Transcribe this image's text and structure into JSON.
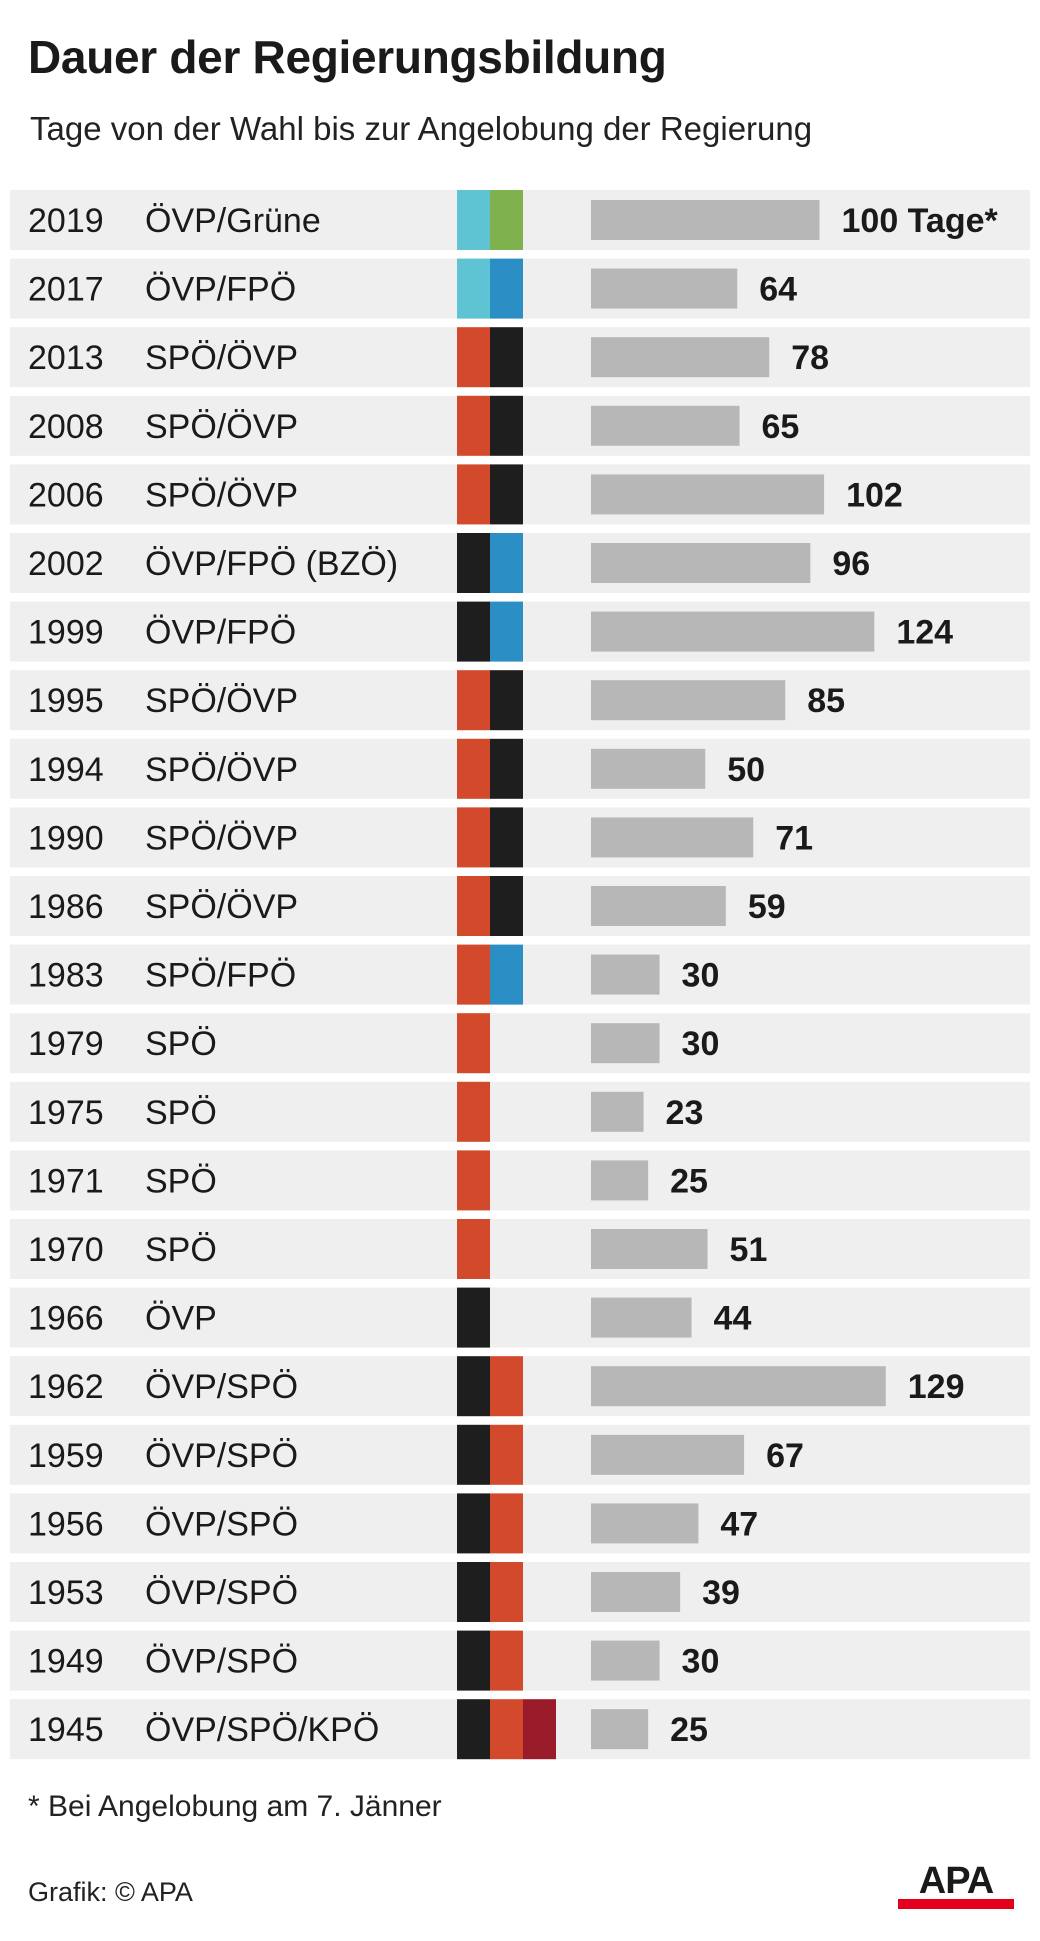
{
  "header": {
    "title": "Dauer der Regierungsbildung",
    "subtitle": "Tage von der Wahl bis zur Angelobung der Regierung"
  },
  "footer": {
    "footnote": "* Bei Angelobung am 7. Jänner",
    "credit": "Grafik: © APA",
    "logo_text": "APA"
  },
  "colors": {
    "row_bg": "#efeff0",
    "bar": "#b7b7b8",
    "text": "#1a1a1a",
    "party": {
      "ÖVP_new": "#5ec4d3",
      "Grüne": "#7fb24e",
      "FPÖ": "#2b8ec4",
      "SPÖ": "#d2492b",
      "ÖVP": "#1e1e1e",
      "KPÖ": "#9a1c2a"
    },
    "logo_red": "#e3001b"
  },
  "chart_data": {
    "type": "bar",
    "orientation": "horizontal",
    "unit": "Tage",
    "rows": [
      {
        "year": "2019",
        "coalition": "ÖVP/Grüne",
        "parties": [
          "ÖVP_new",
          "Grüne"
        ],
        "value": 100,
        "label": "100 Tage*"
      },
      {
        "year": "2017",
        "coalition": "ÖVP/FPÖ",
        "parties": [
          "ÖVP_new",
          "FPÖ"
        ],
        "value": 64,
        "label": "64"
      },
      {
        "year": "2013",
        "coalition": "SPÖ/ÖVP",
        "parties": [
          "SPÖ",
          "ÖVP"
        ],
        "value": 78,
        "label": "78"
      },
      {
        "year": "2008",
        "coalition": "SPÖ/ÖVP",
        "parties": [
          "SPÖ",
          "ÖVP"
        ],
        "value": 65,
        "label": "65"
      },
      {
        "year": "2006",
        "coalition": "SPÖ/ÖVP",
        "parties": [
          "SPÖ",
          "ÖVP"
        ],
        "value": 102,
        "label": "102"
      },
      {
        "year": "2002",
        "coalition": "ÖVP/FPÖ (BZÖ)",
        "parties": [
          "ÖVP",
          "FPÖ"
        ],
        "value": 96,
        "label": "96"
      },
      {
        "year": "1999",
        "coalition": "ÖVP/FPÖ",
        "parties": [
          "ÖVP",
          "FPÖ"
        ],
        "value": 124,
        "label": "124"
      },
      {
        "year": "1995",
        "coalition": "SPÖ/ÖVP",
        "parties": [
          "SPÖ",
          "ÖVP"
        ],
        "value": 85,
        "label": "85"
      },
      {
        "year": "1994",
        "coalition": "SPÖ/ÖVP",
        "parties": [
          "SPÖ",
          "ÖVP"
        ],
        "value": 50,
        "label": "50"
      },
      {
        "year": "1990",
        "coalition": "SPÖ/ÖVP",
        "parties": [
          "SPÖ",
          "ÖVP"
        ],
        "value": 71,
        "label": "71"
      },
      {
        "year": "1986",
        "coalition": "SPÖ/ÖVP",
        "parties": [
          "SPÖ",
          "ÖVP"
        ],
        "value": 59,
        "label": "59"
      },
      {
        "year": "1983",
        "coalition": "SPÖ/FPÖ",
        "parties": [
          "SPÖ",
          "FPÖ"
        ],
        "value": 30,
        "label": "30"
      },
      {
        "year": "1979",
        "coalition": "SPÖ",
        "parties": [
          "SPÖ"
        ],
        "value": 30,
        "label": "30"
      },
      {
        "year": "1975",
        "coalition": "SPÖ",
        "parties": [
          "SPÖ"
        ],
        "value": 23,
        "label": "23"
      },
      {
        "year": "1971",
        "coalition": "SPÖ",
        "parties": [
          "SPÖ"
        ],
        "value": 25,
        "label": "25"
      },
      {
        "year": "1970",
        "coalition": "SPÖ",
        "parties": [
          "SPÖ"
        ],
        "value": 51,
        "label": "51"
      },
      {
        "year": "1966",
        "coalition": "ÖVP",
        "parties": [
          "ÖVP"
        ],
        "value": 44,
        "label": "44"
      },
      {
        "year": "1962",
        "coalition": "ÖVP/SPÖ",
        "parties": [
          "ÖVP",
          "SPÖ"
        ],
        "value": 129,
        "label": "129"
      },
      {
        "year": "1959",
        "coalition": "ÖVP/SPÖ",
        "parties": [
          "ÖVP",
          "SPÖ"
        ],
        "value": 67,
        "label": "67"
      },
      {
        "year": "1956",
        "coalition": "ÖVP/SPÖ",
        "parties": [
          "ÖVP",
          "SPÖ"
        ],
        "value": 47,
        "label": "47"
      },
      {
        "year": "1953",
        "coalition": "ÖVP/SPÖ",
        "parties": [
          "ÖVP",
          "SPÖ"
        ],
        "value": 39,
        "label": "39"
      },
      {
        "year": "1949",
        "coalition": "ÖVP/SPÖ",
        "parties": [
          "ÖVP",
          "SPÖ"
        ],
        "value": 30,
        "label": "30"
      },
      {
        "year": "1945",
        "coalition": "ÖVP/SPÖ/KPÖ",
        "parties": [
          "ÖVP",
          "SPÖ",
          "KPÖ"
        ],
        "value": 25,
        "label": "25"
      }
    ]
  }
}
